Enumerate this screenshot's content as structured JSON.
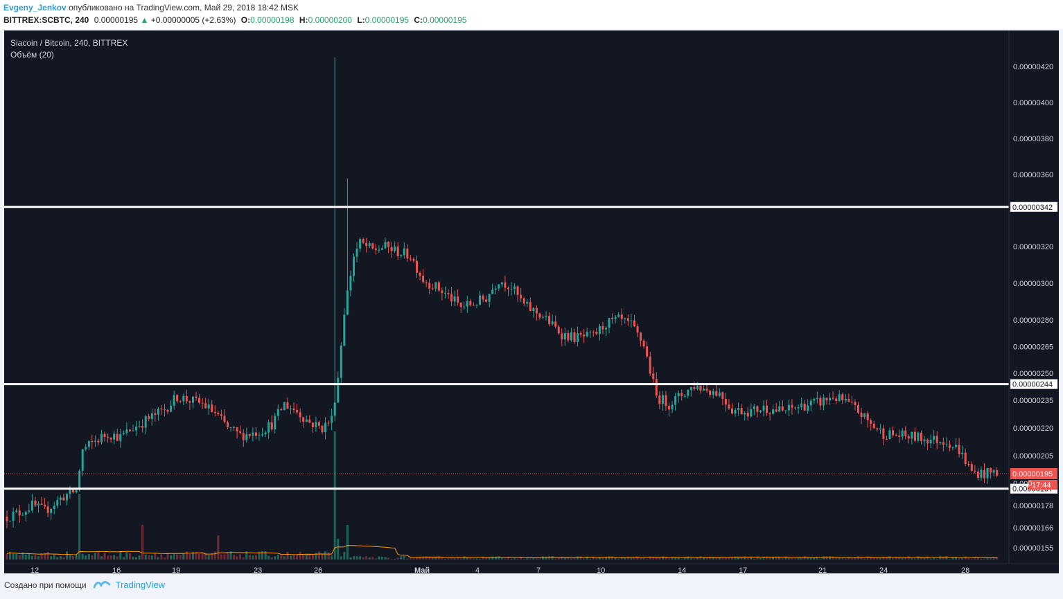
{
  "header": {
    "author": "Evgeny_Jenkov",
    "published_text": "опубликовано на TradingView.com, Май 29, 2018 18:42 MSK",
    "symbol": "BITTREX:SCBTC, 240",
    "last_price": "0.00000195",
    "change_arrow": "▲",
    "change": "+0.00000005 (+2.63%)",
    "o_label": "O:",
    "o_value": "0.00000198",
    "h_label": "H:",
    "h_value": "0.00000200",
    "l_label": "L:",
    "l_value": "0.00000195",
    "c_label": "C:",
    "c_value": "0.00000195"
  },
  "legend": {
    "title": "Siacoin / Bitcoin, 240, BITTREX",
    "indicator": "Объём (20)"
  },
  "footer": {
    "created_with": "Создано при помощи",
    "brand": "TradingView"
  },
  "colors": {
    "up": "#26a69a",
    "down": "#ef5350",
    "background": "#131722",
    "axis_text": "#d1d4dc",
    "hline": "#ffffff",
    "ma_line": "#ff9800",
    "price_label": "#ef5350"
  },
  "chart_data": {
    "type": "candlestick",
    "y_ticks": [
      "0.00000420",
      "0.00000400",
      "0.00000380",
      "0.00000360",
      "0.00000320",
      "0.00000300",
      "0.00000280",
      "0.00000265",
      "0.00000250",
      "0.00000235",
      "0.00000220",
      "0.00000205",
      "0.00000178",
      "0.00000166",
      "0.00000155"
    ],
    "x_ticks": [
      "12",
      "16",
      "19",
      "23",
      "26",
      "Май",
      "4",
      "7",
      "10",
      "14",
      "17",
      "21",
      "24",
      "28"
    ],
    "horizontal_lines": [
      {
        "price": 3.42e-06,
        "label": "0.00000342"
      },
      {
        "price": 2.44e-06,
        "label": "0.00000244"
      },
      {
        "price": 1.87e-06,
        "label": "0.00000187"
      }
    ],
    "current_price": {
      "value": 1.95e-06,
      "label": "0.00000195",
      "countdown": "17:44",
      "partial_label": "0.000"
    },
    "anchors": [
      [
        0,
        1.72
      ],
      [
        4,
        1.74
      ],
      [
        8,
        1.78
      ],
      [
        12,
        1.75
      ],
      [
        18,
        1.83
      ],
      [
        22,
        1.86
      ],
      [
        24,
        2.08
      ],
      [
        28,
        2.13
      ],
      [
        32,
        2.17
      ],
      [
        36,
        2.15
      ],
      [
        40,
        2.2
      ],
      [
        44,
        2.24
      ],
      [
        50,
        2.3
      ],
      [
        54,
        2.37
      ],
      [
        58,
        2.35
      ],
      [
        62,
        2.33
      ],
      [
        66,
        2.28
      ],
      [
        70,
        2.2
      ],
      [
        74,
        2.16
      ],
      [
        80,
        2.18
      ],
      [
        84,
        2.22
      ],
      [
        88,
        2.33
      ],
      [
        92,
        2.29
      ],
      [
        96,
        2.23
      ],
      [
        100,
        2.2
      ],
      [
        103,
        2.25
      ],
      [
        105,
        2.48
      ],
      [
        107,
        2.85
      ],
      [
        110,
        3.15
      ],
      [
        112,
        3.22
      ],
      [
        116,
        3.18
      ],
      [
        120,
        3.2
      ],
      [
        124,
        3.17
      ],
      [
        128,
        3.15
      ],
      [
        132,
        3.02
      ],
      [
        136,
        2.98
      ],
      [
        140,
        2.93
      ],
      [
        144,
        2.87
      ],
      [
        148,
        2.89
      ],
      [
        152,
        2.92
      ],
      [
        156,
        3.02
      ],
      [
        160,
        2.98
      ],
      [
        164,
        2.88
      ],
      [
        170,
        2.82
      ],
      [
        176,
        2.72
      ],
      [
        180,
        2.7
      ],
      [
        186,
        2.71
      ],
      [
        190,
        2.78
      ],
      [
        194,
        2.8
      ],
      [
        198,
        2.77
      ],
      [
        202,
        2.66
      ],
      [
        206,
        2.37
      ],
      [
        210,
        2.33
      ],
      [
        214,
        2.38
      ],
      [
        218,
        2.43
      ],
      [
        222,
        2.41
      ],
      [
        226,
        2.39
      ],
      [
        230,
        2.3
      ],
      [
        236,
        2.29
      ],
      [
        240,
        2.31
      ],
      [
        246,
        2.29
      ],
      [
        252,
        2.32
      ],
      [
        258,
        2.34
      ],
      [
        262,
        2.37
      ],
      [
        266,
        2.34
      ],
      [
        270,
        2.29
      ],
      [
        274,
        2.22
      ],
      [
        278,
        2.17
      ],
      [
        282,
        2.16
      ],
      [
        288,
        2.15
      ],
      [
        292,
        2.14
      ],
      [
        298,
        2.13
      ],
      [
        302,
        2.08
      ],
      [
        306,
        1.96
      ],
      [
        310,
        1.95
      ],
      [
        314,
        1.96
      ]
    ],
    "spikes": [
      {
        "index": 104,
        "high": 4.25
      },
      {
        "index": 108,
        "high": 3.58
      }
    ],
    "volume_spikes": [
      {
        "index": 23,
        "vol": 95
      },
      {
        "index": 43,
        "vol": 50
      },
      {
        "index": 67,
        "vol": 35
      },
      {
        "index": 104,
        "vol": 185
      },
      {
        "index": 105,
        "vol": 30
      },
      {
        "index": 108,
        "vol": 50
      }
    ],
    "candle_count": 315,
    "price_unit": 1e-06
  }
}
